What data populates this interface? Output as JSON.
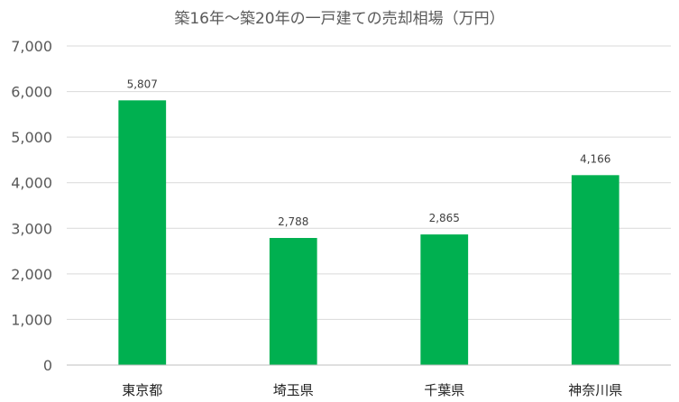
{
  "chart_data": {
    "type": "bar",
    "title": "築16年～築20年の一戸建ての売却相場（万円）",
    "categories": [
      "東京都",
      "埼玉県",
      "千葉県",
      "神奈川県"
    ],
    "values": [
      5807,
      2788,
      2865,
      4166
    ],
    "data_labels": [
      "5,807",
      "2,788",
      "2,865",
      "4,166"
    ],
    "ylim": [
      0,
      7000
    ],
    "yticks": [
      0,
      1000,
      2000,
      3000,
      4000,
      5000,
      6000,
      7000
    ],
    "ytick_labels": [
      "0",
      "1,000",
      "2,000",
      "3,000",
      "4,000",
      "5,000",
      "6,000",
      "7,000"
    ],
    "xlabel": "",
    "ylabel": "",
    "grid": true,
    "legend": "none",
    "bar_color": "#00b050",
    "grid_color": "#d9d9d9"
  }
}
